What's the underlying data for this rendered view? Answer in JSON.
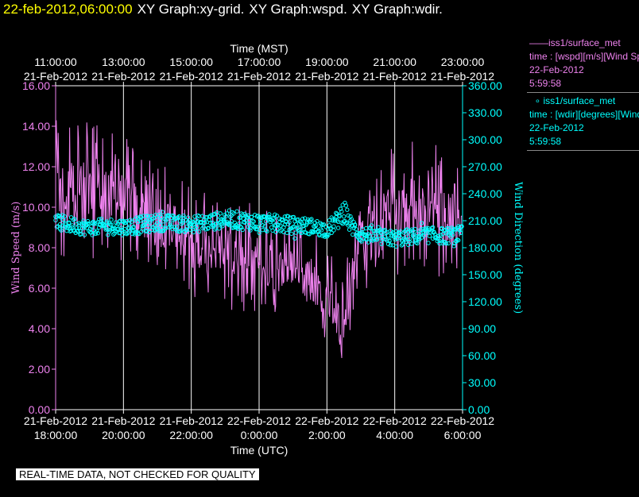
{
  "header": {
    "timestamp": "22-feb-2012,06:00:00",
    "graphs": [
      "XY Graph:xy-grid.",
      "XY Graph:wspd.",
      "XY Graph:wdir."
    ]
  },
  "legend": [
    {
      "series": "iss1/surface_met",
      "desc": "time : [wspd][m/s][Wind Speed]",
      "date": "22-Feb-2012",
      "time": "5:59:58",
      "color": "#ee82ee",
      "marker": "line"
    },
    {
      "series": "iss1/surface_met",
      "desc": "time : [wdir][degrees][Wind Direction]",
      "date": "22-Feb-2012",
      "time": "5:59:58",
      "color": "#00ffff",
      "marker": "circle"
    }
  ],
  "note": "REAL-TIME DATA, NOT CHECKED FOR QUALITY",
  "chart_data": {
    "type": "line",
    "top_axis": {
      "title": "Time (MST)",
      "ticks": [
        {
          "time": "11:00:00",
          "date": "21-Feb-2012"
        },
        {
          "time": "13:00:00",
          "date": "21-Feb-2012"
        },
        {
          "time": "15:00:00",
          "date": "21-Feb-2012"
        },
        {
          "time": "17:00:00",
          "date": "21-Feb-2012"
        },
        {
          "time": "19:00:00",
          "date": "21-Feb-2012"
        },
        {
          "time": "21:00:00",
          "date": "21-Feb-2012"
        },
        {
          "time": "23:00:00",
          "date": "21-Feb-2012"
        }
      ]
    },
    "bottom_axis": {
      "title": "Time (UTC)",
      "ticks": [
        {
          "date": "21-Feb-2012",
          "time": "18:00:00"
        },
        {
          "date": "21-Feb-2012",
          "time": "20:00:00"
        },
        {
          "date": "21-Feb-2012",
          "time": "22:00:00"
        },
        {
          "date": "22-Feb-2012",
          "time": "0:00:00"
        },
        {
          "date": "22-Feb-2012",
          "time": "2:00:00"
        },
        {
          "date": "22-Feb-2012",
          "time": "4:00:00"
        },
        {
          "date": "22-Feb-2012",
          "time": "6:00:00"
        }
      ]
    },
    "x_range_utc": [
      "2012-02-21 18:00:00",
      "2012-02-22 06:00:00"
    ],
    "y_left": {
      "label": "Wind Speed (m/s)",
      "range": [
        0,
        16
      ],
      "ticks": [
        "0.00",
        "2.00",
        "4.00",
        "6.00",
        "8.00",
        "10.00",
        "12.00",
        "14.00",
        "16.00"
      ]
    },
    "y_right": {
      "label": "Wind Direction (degrees)",
      "range": [
        0,
        360
      ],
      "ticks": [
        "0.00",
        "30.00",
        "60.00",
        "90.00",
        "120.00",
        "150.00",
        "180.00",
        "210.00",
        "240.00",
        "270.00",
        "300.00",
        "330.00",
        "360.00"
      ]
    },
    "grid": "vertical at x ticks",
    "series": [
      {
        "name": "iss1/surface_met wspd",
        "color": "#ee82ee",
        "style": "line",
        "axis": "left",
        "x_hours_utc": [
          18.0,
          18.5,
          19.0,
          19.5,
          20.0,
          20.5,
          21.0,
          21.5,
          22.0,
          22.5,
          23.0,
          23.5,
          24.0,
          24.5,
          25.0,
          25.5,
          26.0,
          26.2,
          26.4,
          26.5,
          26.7,
          27.0,
          27.5,
          28.0,
          28.5,
          29.0,
          29.5,
          30.0
        ],
        "mean": [
          10.4,
          10.6,
          10.5,
          10.4,
          10.2,
          10.0,
          9.6,
          9.0,
          8.5,
          8.0,
          7.8,
          7.6,
          7.3,
          7.0,
          6.8,
          6.6,
          5.5,
          5.0,
          4.2,
          3.6,
          6.0,
          7.8,
          9.0,
          10.0,
          10.3,
          10.0,
          9.8,
          9.6
        ],
        "low": [
          7.0,
          7.3,
          7.6,
          7.0,
          7.2,
          6.8,
          6.5,
          6.0,
          5.5,
          5.3,
          5.0,
          4.8,
          4.6,
          4.4,
          4.2,
          4.0,
          3.4,
          3.0,
          2.6,
          2.3,
          3.6,
          5.4,
          6.0,
          6.4,
          6.8,
          6.2,
          6.5,
          6.6
        ],
        "high": [
          14.3,
          14.6,
          14.8,
          13.8,
          13.6,
          12.6,
          12.4,
          11.6,
          11.3,
          10.8,
          10.3,
          10.6,
          10.0,
          9.8,
          9.5,
          9.3,
          8.2,
          7.6,
          7.0,
          6.2,
          9.0,
          11.0,
          12.2,
          13.2,
          13.6,
          13.0,
          13.4,
          14.2
        ]
      },
      {
        "name": "iss1/surface_met wdir",
        "color": "#00ffff",
        "style": "circles",
        "axis": "right",
        "x_hours_utc": [
          18.0,
          18.5,
          19.0,
          19.5,
          20.0,
          20.5,
          21.0,
          21.5,
          22.0,
          22.5,
          23.0,
          23.5,
          24.0,
          24.5,
          25.0,
          25.5,
          26.0,
          26.3,
          26.5,
          26.7,
          27.0,
          27.5,
          28.0,
          28.5,
          29.0,
          29.5,
          30.0
        ],
        "mean": [
          208,
          205,
          202,
          204,
          203,
          205,
          208,
          207,
          206,
          208,
          212,
          210,
          208,
          207,
          205,
          204,
          200,
          210,
          222,
          205,
          195,
          192,
          190,
          192,
          194,
          193,
          195
        ],
        "low": [
          195,
          192,
          190,
          191,
          190,
          192,
          195,
          194,
          193,
          195,
          198,
          196,
          194,
          192,
          190,
          190,
          188,
          198,
          205,
          190,
          182,
          180,
          178,
          180,
          182,
          180,
          183
        ],
        "high": [
          222,
          218,
          215,
          216,
          216,
          220,
          222,
          220,
          220,
          222,
          226,
          225,
          222,
          220,
          218,
          216,
          212,
          228,
          245,
          220,
          208,
          205,
          205,
          206,
          208,
          206,
          210
        ]
      }
    ]
  }
}
